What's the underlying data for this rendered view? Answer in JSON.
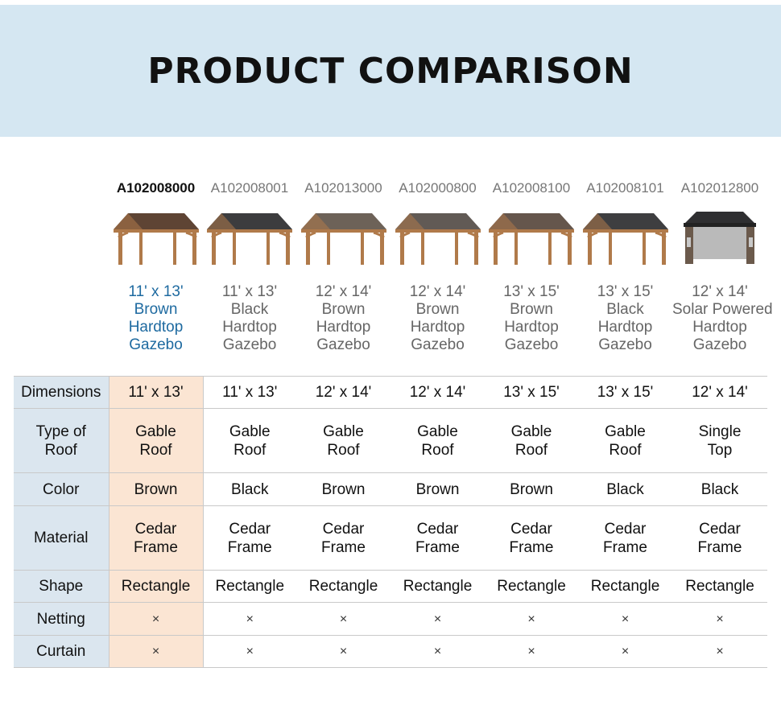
{
  "title": "PRODUCT COMPARISON",
  "products": [
    {
      "code": "A102008000",
      "name": [
        "11' x 13'",
        "Brown",
        "Hardtop",
        "Gazebo"
      ],
      "roof": "#5e4434",
      "selected": true
    },
    {
      "code": "A102008001",
      "name": [
        "11' x 13'",
        "Black",
        "Hardtop",
        "Gazebo"
      ],
      "roof": "#3c3c3e",
      "selected": false
    },
    {
      "code": "A102013000",
      "name": [
        "12' x 14'",
        "Brown",
        "Hardtop",
        "Gazebo"
      ],
      "roof": "#6d6258",
      "selected": false
    },
    {
      "code": "A102000800",
      "name": [
        "12' x 14'",
        "Brown",
        "Hardtop",
        "Gazebo"
      ],
      "roof": "#615a55",
      "selected": false
    },
    {
      "code": "A102008100",
      "name": [
        "13' x 15'",
        "Brown",
        "Hardtop",
        "Gazebo"
      ],
      "roof": "#65564c",
      "selected": false
    },
    {
      "code": "A102008101",
      "name": [
        "13' x 15'",
        "Black",
        "Hardtop",
        "Gazebo"
      ],
      "roof": "#3e3e40",
      "selected": false
    },
    {
      "code": "A102012800",
      "name": [
        "12' x 14'",
        "Solar Powered",
        "Hardtop",
        "Gazebo"
      ],
      "roof": "#2f2f31",
      "selected": false
    }
  ],
  "rows": [
    {
      "label": [
        "Dimensions"
      ],
      "values": [
        [
          "11' x 13'"
        ],
        [
          "11' x 13'"
        ],
        [
          "12' x 14'"
        ],
        [
          "12' x 14'"
        ],
        [
          "13' x 15'"
        ],
        [
          "13' x 15'"
        ],
        [
          "12' x 14'"
        ]
      ]
    },
    {
      "label": [
        "Type of",
        "Roof"
      ],
      "values": [
        [
          "Gable",
          "Roof"
        ],
        [
          "Gable",
          "Roof"
        ],
        [
          "Gable",
          "Roof"
        ],
        [
          "Gable",
          "Roof"
        ],
        [
          "Gable",
          "Roof"
        ],
        [
          "Gable",
          "Roof"
        ],
        [
          "Single",
          "Top"
        ]
      ]
    },
    {
      "label": [
        "Color"
      ],
      "values": [
        [
          "Brown"
        ],
        [
          "Black"
        ],
        [
          "Brown"
        ],
        [
          "Brown"
        ],
        [
          "Brown"
        ],
        [
          "Black"
        ],
        [
          "Black"
        ]
      ]
    },
    {
      "label": [
        "Material"
      ],
      "values": [
        [
          "Cedar",
          "Frame"
        ],
        [
          "Cedar",
          "Frame"
        ],
        [
          "Cedar",
          "Frame"
        ],
        [
          "Cedar",
          "Frame"
        ],
        [
          "Cedar",
          "Frame"
        ],
        [
          "Cedar",
          "Frame"
        ],
        [
          "Cedar",
          "Frame"
        ]
      ]
    },
    {
      "label": [
        "Shape"
      ],
      "values": [
        [
          "Rectangle"
        ],
        [
          "Rectangle"
        ],
        [
          "Rectangle"
        ],
        [
          "Rectangle"
        ],
        [
          "Rectangle"
        ],
        [
          "Rectangle"
        ],
        [
          "Rectangle"
        ]
      ]
    },
    {
      "label": [
        "Netting"
      ],
      "values": [
        [
          "×"
        ],
        [
          "×"
        ],
        [
          "×"
        ],
        [
          "×"
        ],
        [
          "×"
        ],
        [
          "×"
        ],
        [
          "×"
        ]
      ]
    },
    {
      "label": [
        "Curtain"
      ],
      "values": [
        [
          "×"
        ],
        [
          "×"
        ],
        [
          "×"
        ],
        [
          "×"
        ],
        [
          "×"
        ],
        [
          "×"
        ],
        [
          "×"
        ]
      ]
    }
  ],
  "colors": {
    "banner": "#d5e7f2",
    "label_column": "#dbe6ef",
    "selected_column": "#fbe5d3",
    "selected_name": "#1e6aa0",
    "wood": "#b07a4a"
  }
}
